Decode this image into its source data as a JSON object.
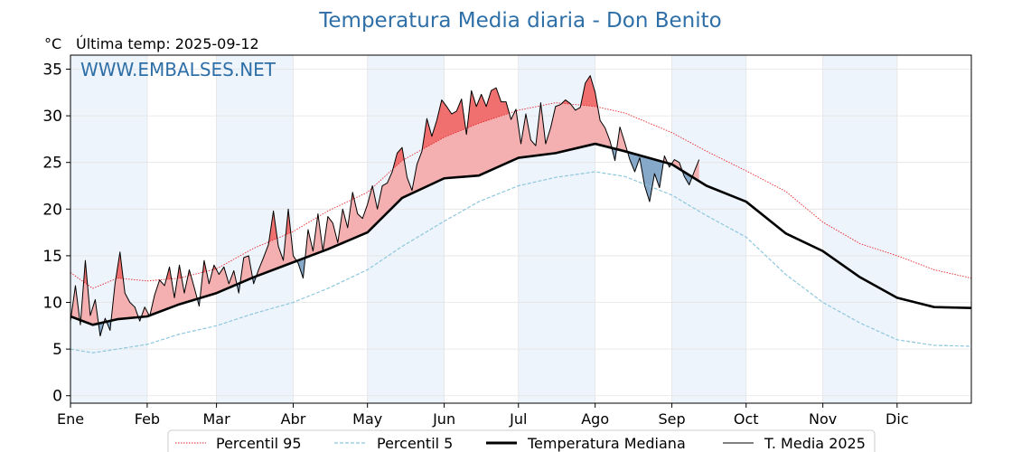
{
  "header": {
    "title": "Temperatura Media diaria - Don Benito",
    "unit": "°C",
    "last_update": "Última temp: 2025-09-12",
    "watermark": "WWW.EMBALSES.NET"
  },
  "colors": {
    "title": "#2e6fa7",
    "p95": "#e8252b",
    "p5": "#8ec7de",
    "median": "#000000",
    "current": "#000000",
    "above_median_fill": "#f4b0b0",
    "above_p95_fill": "#f07070",
    "below_median_fill": "#86a9c9",
    "month_shade": "#eef4fb",
    "grid": "#e3e3e3"
  },
  "chart_data": {
    "type": "line",
    "title": "Temperatura Media diaria - Don Benito",
    "ylabel": "°C",
    "ylim": [
      -0.8,
      36.5
    ],
    "yticks": [
      0,
      5,
      10,
      15,
      20,
      25,
      30,
      35
    ],
    "xlim": [
      1,
      365
    ],
    "months": [
      {
        "label": "Ene",
        "day": 1
      },
      {
        "label": "Feb",
        "day": 32
      },
      {
        "label": "Mar",
        "day": 60
      },
      {
        "label": "Abr",
        "day": 91
      },
      {
        "label": "May",
        "day": 121
      },
      {
        "label": "Jun",
        "day": 152
      },
      {
        "label": "Jul",
        "day": 182
      },
      {
        "label": "Ago",
        "day": 213
      },
      {
        "label": "Sep",
        "day": 244
      },
      {
        "label": "Oct",
        "day": 274
      },
      {
        "label": "Nov",
        "day": 305
      },
      {
        "label": "Dic",
        "day": 335
      }
    ],
    "grid": true,
    "legend_position": "bottom",
    "series": [
      {
        "name": "Percentil 95",
        "style": "dotted-red",
        "x": [
          1,
          10,
          20,
          32,
          45,
          60,
          75,
          91,
          105,
          121,
          135,
          152,
          166,
          182,
          197,
          213,
          225,
          244,
          258,
          274,
          290,
          305,
          320,
          335,
          350,
          365
        ],
        "values": [
          13.2,
          11.5,
          12.6,
          12.3,
          12.6,
          13.6,
          15.8,
          17.6,
          19.8,
          21.8,
          25.2,
          27.7,
          29.2,
          30.6,
          31.4,
          31.0,
          30.3,
          28.2,
          26.2,
          24.1,
          21.9,
          18.6,
          16.3,
          15.0,
          13.5,
          12.6
        ]
      },
      {
        "name": "Percentil 5",
        "style": "dashed-blue",
        "x": [
          1,
          10,
          20,
          32,
          45,
          60,
          75,
          91,
          105,
          121,
          135,
          152,
          166,
          182,
          197,
          213,
          225,
          244,
          258,
          274,
          290,
          305,
          320,
          335,
          350,
          365
        ],
        "values": [
          5.0,
          4.6,
          5.0,
          5.5,
          6.6,
          7.5,
          8.8,
          10.0,
          11.5,
          13.5,
          16.0,
          18.7,
          20.8,
          22.5,
          23.4,
          24.0,
          23.5,
          21.5,
          19.3,
          17.0,
          13.0,
          10.0,
          7.8,
          6.0,
          5.4,
          5.3
        ]
      },
      {
        "name": "Temperatura Mediana",
        "style": "solid-bold-black",
        "x": [
          1,
          10,
          20,
          32,
          45,
          60,
          75,
          91,
          105,
          121,
          135,
          152,
          166,
          182,
          197,
          213,
          225,
          244,
          258,
          274,
          290,
          305,
          320,
          335,
          350,
          365
        ],
        "values": [
          8.5,
          7.6,
          8.2,
          8.5,
          9.8,
          11.0,
          12.7,
          14.3,
          15.7,
          17.5,
          21.2,
          23.3,
          23.6,
          25.5,
          26.0,
          27.0,
          26.2,
          24.8,
          22.5,
          20.8,
          17.4,
          15.5,
          12.7,
          10.5,
          9.5,
          9.4
        ]
      },
      {
        "name": "T. Media 2025",
        "style": "solid-thin-black",
        "x": [
          1,
          3,
          5,
          7,
          9,
          11,
          13,
          15,
          17,
          19,
          21,
          23,
          25,
          27,
          29,
          31,
          33,
          35,
          37,
          39,
          41,
          43,
          45,
          47,
          49,
          51,
          53,
          55,
          57,
          59,
          61,
          63,
          65,
          67,
          69,
          71,
          73,
          75,
          77,
          79,
          81,
          83,
          85,
          87,
          89,
          91,
          93,
          95,
          97,
          99,
          101,
          103,
          105,
          107,
          109,
          111,
          113,
          115,
          117,
          119,
          121,
          123,
          125,
          127,
          129,
          131,
          133,
          135,
          137,
          139,
          141,
          143,
          145,
          147,
          149,
          151,
          153,
          155,
          157,
          159,
          161,
          163,
          165,
          167,
          169,
          171,
          173,
          175,
          177,
          179,
          181,
          183,
          185,
          187,
          189,
          191,
          193,
          195,
          197,
          199,
          201,
          203,
          205,
          207,
          209,
          211,
          213,
          215,
          217,
          219,
          221,
          223,
          225,
          227,
          229,
          231,
          233,
          235,
          237,
          239,
          241,
          243,
          245,
          247,
          249,
          251,
          253,
          255
        ],
        "values": [
          8.0,
          11.8,
          7.6,
          14.5,
          8.6,
          10.3,
          6.4,
          8.3,
          7.0,
          12.0,
          15.4,
          11.0,
          10.0,
          9.5,
          8.0,
          9.5,
          8.5,
          10.8,
          12.4,
          11.8,
          13.8,
          10.5,
          14.0,
          11.0,
          13.5,
          11.6,
          9.6,
          14.5,
          12.0,
          14.0,
          13.0,
          13.8,
          12.0,
          13.4,
          11.0,
          14.8,
          15.0,
          12.0,
          13.5,
          14.8,
          16.2,
          19.8,
          16.0,
          14.5,
          20.0,
          15.0,
          14.2,
          12.6,
          17.8,
          15.5,
          19.5,
          15.5,
          19.2,
          18.5,
          16.4,
          20.0,
          18.0,
          21.8,
          19.5,
          19.0,
          20.5,
          22.5,
          20.0,
          22.5,
          22.8,
          24.0,
          26.0,
          26.6,
          23.4,
          22.0,
          24.8,
          26.2,
          29.7,
          27.8,
          29.5,
          31.7,
          31.0,
          30.2,
          30.5,
          31.8,
          28.0,
          32.7,
          31.0,
          32.3,
          31.0,
          32.7,
          33.0,
          31.5,
          31.5,
          29.6,
          30.7,
          27.0,
          30.2,
          27.4,
          26.8,
          31.4,
          27.0,
          28.7,
          31.0,
          31.2,
          31.7,
          31.3,
          30.6,
          30.9,
          33.5,
          34.3,
          32.5,
          29.5,
          28.7,
          27.3,
          25.2,
          28.8,
          27.1,
          25.3,
          24.0,
          25.5,
          22.5,
          20.8,
          23.8,
          22.3,
          25.7,
          24.5,
          25.3,
          25.0,
          23.5,
          22.6,
          24.0,
          25.3
        ]
      }
    ]
  },
  "legend": {
    "items": [
      {
        "label": "Percentil 95"
      },
      {
        "label": "Percentil 5"
      },
      {
        "label": "Temperatura Mediana"
      },
      {
        "label": "T. Media 2025"
      }
    ]
  }
}
